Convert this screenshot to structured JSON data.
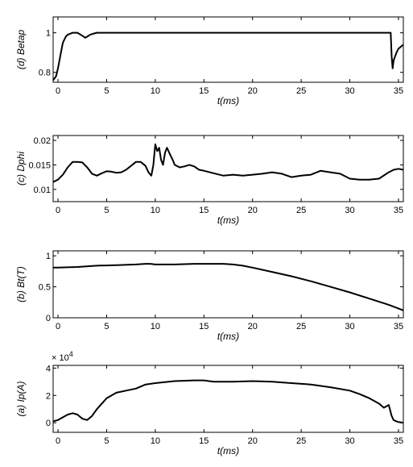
{
  "chart_data": [
    {
      "type": "line",
      "ylabel": "(d) Betap",
      "xlabel": "t(ms)",
      "xlim": [
        -0.5,
        35.5
      ],
      "ylim": [
        0.75,
        1.08
      ],
      "xticks": [
        "0",
        "5",
        "10",
        "15",
        "20",
        "25",
        "30",
        "35"
      ],
      "yticks": [
        "0.8",
        "1"
      ],
      "exponent": "",
      "x": [
        -0.5,
        -0.2,
        0,
        0.3,
        0.5,
        0.8,
        1,
        1.5,
        2,
        2.5,
        2.8,
        3,
        3.3,
        3.6,
        4,
        5,
        10,
        15,
        20,
        25,
        30,
        33,
        34.2,
        34.3,
        34.4,
        34.5,
        34.8,
        35,
        35.5
      ],
      "y": [
        0.76,
        0.78,
        0.82,
        0.9,
        0.95,
        0.98,
        0.99,
        1.0,
        1.0,
        0.985,
        0.975,
        0.98,
        0.99,
        0.995,
        1.0,
        1.0,
        1.0,
        1.0,
        1.0,
        1.0,
        1.0,
        1.0,
        1.0,
        0.88,
        0.82,
        0.86,
        0.9,
        0.92,
        0.94
      ]
    },
    {
      "type": "line",
      "ylabel": "(c) Dphi",
      "xlabel": "t(ms)",
      "xlim": [
        -0.5,
        35.5
      ],
      "ylim": [
        0.0075,
        0.021
      ],
      "xticks": [
        "0",
        "5",
        "10",
        "15",
        "20",
        "25",
        "30",
        "35"
      ],
      "yticks": [
        "0.01",
        "0.015",
        "0.02"
      ],
      "exponent": "",
      "x": [
        -0.5,
        0,
        0.5,
        1,
        1.5,
        2,
        2.5,
        3,
        3.5,
        4,
        4.5,
        5,
        5.5,
        6,
        6.5,
        7,
        7.5,
        8,
        8.5,
        9,
        9.3,
        9.6,
        9.8,
        10,
        10.2,
        10.4,
        10.6,
        10.8,
        11,
        11.2,
        11.5,
        11.8,
        12,
        12.5,
        13,
        13.5,
        14,
        14.5,
        15,
        16,
        17,
        18,
        19,
        20,
        21,
        22,
        23,
        24,
        25,
        26,
        27,
        28,
        29,
        30,
        31,
        32,
        33,
        34,
        34.5,
        35,
        35.5
      ],
      "y": [
        0.0115,
        0.012,
        0.013,
        0.0145,
        0.0156,
        0.0156,
        0.0155,
        0.0145,
        0.0132,
        0.0128,
        0.0133,
        0.0137,
        0.0136,
        0.0134,
        0.0135,
        0.014,
        0.0148,
        0.0156,
        0.0156,
        0.0148,
        0.0135,
        0.0128,
        0.015,
        0.0192,
        0.0178,
        0.0185,
        0.016,
        0.015,
        0.0175,
        0.0185,
        0.0172,
        0.016,
        0.015,
        0.0145,
        0.0147,
        0.015,
        0.0147,
        0.014,
        0.0138,
        0.0133,
        0.0128,
        0.013,
        0.0128,
        0.013,
        0.0132,
        0.0135,
        0.0132,
        0.0125,
        0.0128,
        0.013,
        0.0138,
        0.0135,
        0.0132,
        0.0122,
        0.012,
        0.012,
        0.0122,
        0.0135,
        0.014,
        0.0142,
        0.014
      ]
    },
    {
      "type": "line",
      "ylabel": "(b) Bt(T)",
      "xlabel": "t(ms)",
      "xlim": [
        -0.5,
        35.5
      ],
      "ylim": [
        0,
        1.08
      ],
      "xticks": [
        "0",
        "5",
        "10",
        "15",
        "20",
        "25",
        "30",
        "35"
      ],
      "yticks": [
        "0",
        "0.5",
        "1"
      ],
      "exponent": "",
      "x": [
        -0.5,
        0,
        2,
        4,
        6,
        8,
        9,
        9.5,
        10,
        10.5,
        11,
        12,
        14,
        16,
        17,
        18,
        19,
        20,
        22,
        24,
        26,
        28,
        30,
        32,
        34,
        35.5
      ],
      "y": [
        0.81,
        0.81,
        0.82,
        0.84,
        0.85,
        0.86,
        0.87,
        0.87,
        0.86,
        0.86,
        0.86,
        0.86,
        0.87,
        0.87,
        0.87,
        0.86,
        0.84,
        0.81,
        0.74,
        0.67,
        0.59,
        0.5,
        0.41,
        0.31,
        0.21,
        0.12
      ]
    },
    {
      "type": "line",
      "ylabel": "(a) Ip(A)",
      "xlabel": "t(ms)",
      "xlim": [
        -0.5,
        35.5
      ],
      "ylim": [
        -0.7,
        4.2
      ],
      "xticks": [
        "0",
        "5",
        "10",
        "15",
        "20",
        "25",
        "30",
        "35"
      ],
      "yticks": [
        "0",
        "2",
        "4"
      ],
      "exponent": "4",
      "x": [
        -0.5,
        0,
        0.5,
        1,
        1.5,
        2,
        2.5,
        3,
        3.5,
        4,
        5,
        6,
        7,
        8,
        9,
        10,
        12,
        14,
        15,
        16,
        18,
        20,
        22,
        24,
        26,
        28,
        30,
        31,
        32,
        33,
        33.5,
        34,
        34.3,
        34.5,
        34.8,
        35,
        35.5
      ],
      "y": [
        0.1,
        0.2,
        0.4,
        0.6,
        0.7,
        0.6,
        0.3,
        0.2,
        0.5,
        1.0,
        1.8,
        2.2,
        2.35,
        2.5,
        2.8,
        2.9,
        3.05,
        3.1,
        3.1,
        3.0,
        3.0,
        3.05,
        3.0,
        2.9,
        2.8,
        2.6,
        2.35,
        2.1,
        1.8,
        1.4,
        1.1,
        1.3,
        0.5,
        0.2,
        0.1,
        0.05,
        0.0
      ]
    }
  ]
}
